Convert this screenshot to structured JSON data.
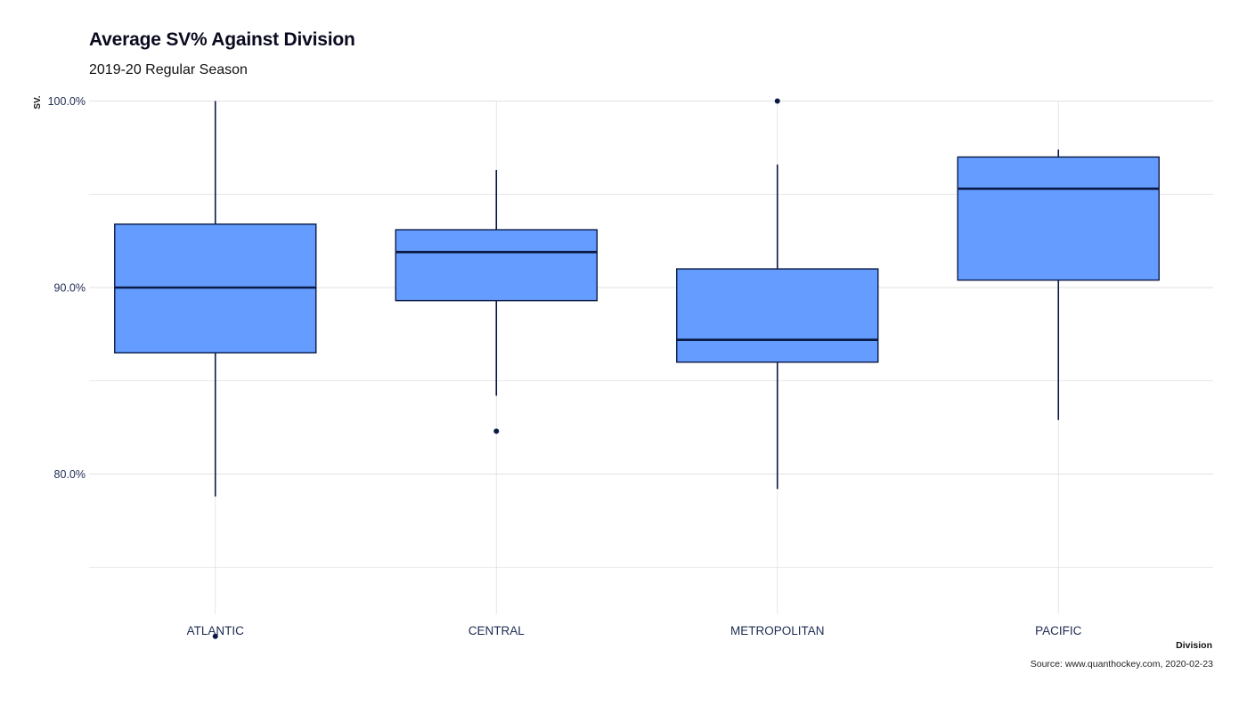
{
  "title": "Average SV% Against Division",
  "subtitle": "2019-20 Regular Season",
  "caption": "Source: www.quanthockey.com, 2020-02-23",
  "colors": {
    "box_fill": "#659cff",
    "box_stroke": "#0a1a45",
    "grid": "#e2e2e2",
    "text": "#1d2b52"
  },
  "chart_data": {
    "type": "boxplot",
    "title": "Average SV% Against Division",
    "subtitle": "2019-20 Regular Season",
    "xlabel": "Division",
    "ylabel": "SV.",
    "ylim": [
      0.72,
      1.0
    ],
    "y_ticks": [
      0.8,
      0.9,
      1.0
    ],
    "y_tick_labels": [
      "80.0%",
      "90.0%",
      "100.0%"
    ],
    "grid": true,
    "categories": [
      "ATLANTIC",
      "CENTRAL",
      "METROPOLITAN",
      "PACIFIC"
    ],
    "boxes": [
      {
        "category": "ATLANTIC",
        "whisker_low": 0.788,
        "q1": 0.865,
        "median": 0.9,
        "q3": 0.934,
        "whisker_high": 1.0,
        "outliers": [
          0.713
        ]
      },
      {
        "category": "CENTRAL",
        "whisker_low": 0.842,
        "q1": 0.893,
        "median": 0.919,
        "q3": 0.931,
        "whisker_high": 0.963,
        "outliers": [
          0.823
        ]
      },
      {
        "category": "METROPOLITAN",
        "whisker_low": 0.792,
        "q1": 0.86,
        "median": 0.872,
        "q3": 0.91,
        "whisker_high": 0.966,
        "outliers": [
          1.0
        ]
      },
      {
        "category": "PACIFIC",
        "whisker_low": 0.829,
        "q1": 0.904,
        "median": 0.953,
        "q3": 0.97,
        "whisker_high": 0.974,
        "outliers": []
      }
    ]
  }
}
